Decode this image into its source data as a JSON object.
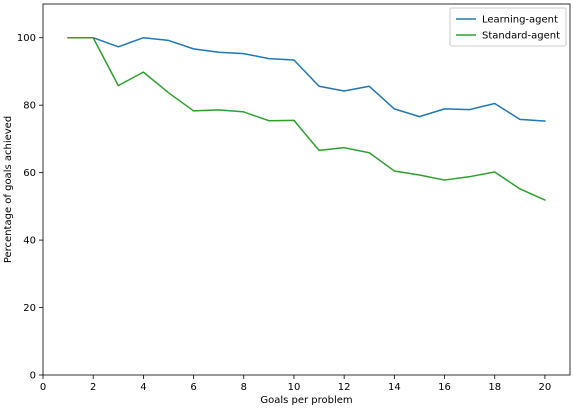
{
  "chart_data": {
    "type": "line",
    "title": "",
    "xlabel": "Goals per problem",
    "ylabel": "Percentage of goals achieved",
    "xlim": [
      0,
      21
    ],
    "ylim": [
      0,
      110
    ],
    "xticks": [
      0,
      2,
      4,
      6,
      8,
      10,
      12,
      14,
      16,
      18,
      20
    ],
    "yticks": [
      0,
      20,
      40,
      60,
      80,
      100
    ],
    "grid": false,
    "legend_position": "top-right",
    "x": [
      1,
      2,
      3,
      4,
      5,
      6,
      7,
      8,
      9,
      10,
      11,
      12,
      13,
      14,
      15,
      16,
      17,
      18,
      19,
      20
    ],
    "series": [
      {
        "name": "Learning-agent",
        "color": "#1f77b4",
        "values": [
          100,
          100,
          97.3,
          100,
          99.2,
          96.7,
          95.7,
          95.3,
          93.8,
          93.4,
          85.6,
          84.2,
          85.6,
          78.9,
          76.6,
          78.9,
          78.7,
          80.5,
          75.8,
          75.3
        ]
      },
      {
        "name": "Standard-agent",
        "color": "#2ca02c",
        "values": [
          100,
          100,
          85.8,
          89.8,
          83.7,
          78.3,
          78.6,
          78.0,
          75.4,
          75.5,
          66.6,
          67.4,
          65.9,
          60.5,
          59.3,
          57.8,
          58.8,
          60.2,
          55.2,
          51.9
        ]
      }
    ]
  }
}
